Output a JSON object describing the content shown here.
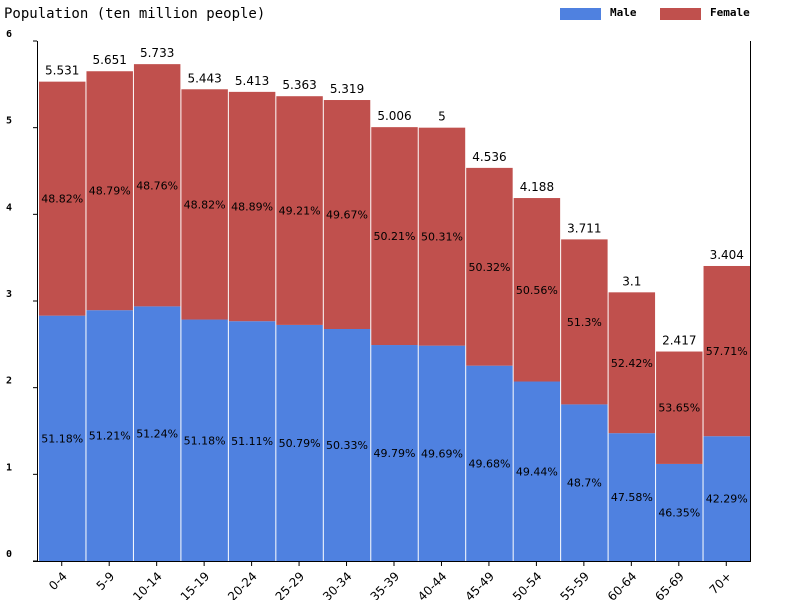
{
  "chart_data": {
    "type": "bar",
    "title": "Population (ten million people)",
    "categories": [
      "0-4",
      "5-9",
      "10-14",
      "15-19",
      "20-24",
      "25-29",
      "30-34",
      "35-39",
      "40-44",
      "45-49",
      "50-54",
      "55-59",
      "60-64",
      "65-69",
      "70+"
    ],
    "totals": [
      "5.531",
      "5.651",
      "5.733",
      "5.443",
      "5.413",
      "5.363",
      "5.319",
      "5.006",
      "5",
      "4.536",
      "4.188",
      "3.711",
      "3.1",
      "2.417",
      "3.404"
    ],
    "series": [
      {
        "name": "Male",
        "color": "#4f81e0",
        "values": [
          2.831,
          2.894,
          2.938,
          2.786,
          2.767,
          2.724,
          2.677,
          2.492,
          2.485,
          2.254,
          2.071,
          1.807,
          1.475,
          1.12,
          1.44
        ],
        "percent_labels": [
          "51.18%",
          "51.21%",
          "51.24%",
          "51.18%",
          "51.11%",
          "50.79%",
          "50.33%",
          "49.79%",
          "49.69%",
          "49.68%",
          "49.44%",
          "48.7%",
          "47.58%",
          "46.35%",
          "42.29%"
        ]
      },
      {
        "name": "Female",
        "color": "#c0504d",
        "values": [
          2.7,
          2.757,
          2.795,
          2.657,
          2.646,
          2.639,
          2.642,
          2.514,
          2.515,
          2.282,
          2.117,
          1.904,
          1.625,
          1.297,
          1.964
        ],
        "percent_labels": [
          "48.82%",
          "48.79%",
          "48.76%",
          "48.82%",
          "48.89%",
          "49.21%",
          "49.67%",
          "50.21%",
          "50.31%",
          "50.32%",
          "50.56%",
          "51.3%",
          "52.42%",
          "53.65%",
          "57.71%"
        ]
      }
    ],
    "stacked": true,
    "ylim": [
      0,
      6
    ],
    "yticks": [
      "0",
      "1",
      "2",
      "3",
      "4",
      "5",
      "6"
    ],
    "legend_position": "top-right",
    "grid": false
  }
}
